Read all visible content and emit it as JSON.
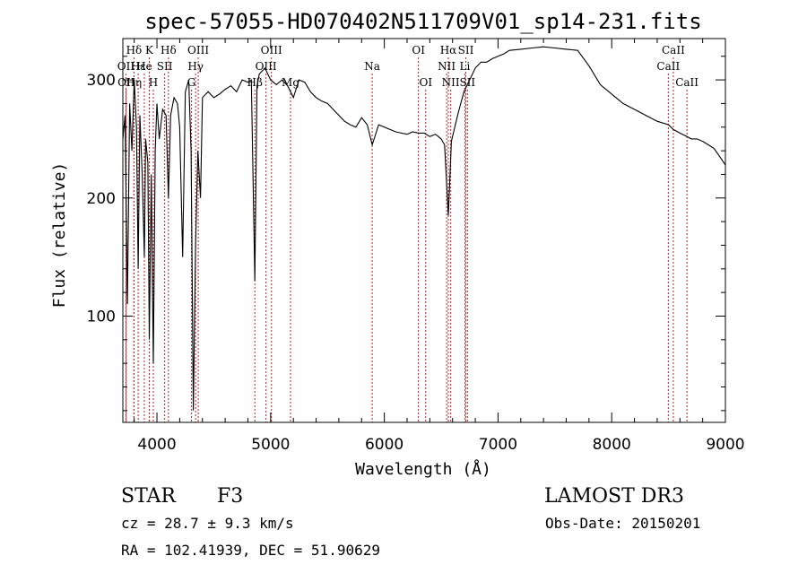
{
  "chart_data": {
    "type": "line",
    "title": "spec-57055-HD070402N511709V01_sp14-231.fits",
    "xlabel": "Wavelength (Å)",
    "ylabel": "Flux (relative)",
    "xlim": [
      3700,
      9000
    ],
    "ylim": [
      10,
      335
    ],
    "xticks": [
      4000,
      5000,
      6000,
      7000,
      8000,
      9000
    ],
    "yticks": [
      100,
      200,
      300
    ],
    "grid": false,
    "line_color": "#000000",
    "marker_color": "#b22222",
    "series": [
      {
        "x": [
          3700,
          3720,
          3740,
          3760,
          3780,
          3800,
          3820,
          3835,
          3850,
          3870,
          3889,
          3900,
          3920,
          3933,
          3950,
          3968,
          3985,
          4000,
          4020,
          4050,
          4080,
          4101,
          4120,
          4150,
          4180,
          4200,
          4226,
          4250,
          4280,
          4300,
          4320,
          4340,
          4360,
          4383,
          4400,
          4450,
          4500,
          4550,
          4600,
          4650,
          4700,
          4750,
          4800,
          4830,
          4861,
          4880,
          4900,
          4950,
          5000,
          5050,
          5100,
          5150,
          5200,
          5250,
          5300,
          5350,
          5400,
          5450,
          5500,
          5550,
          5600,
          5650,
          5700,
          5750,
          5800,
          5850,
          5893,
          5950,
          6000,
          6050,
          6100,
          6150,
          6200,
          6250,
          6300,
          6350,
          6400,
          6450,
          6500,
          6530,
          6563,
          6590,
          6620,
          6650,
          6700,
          6750,
          6800,
          6850,
          6900,
          6950,
          7000,
          7050,
          7100,
          7200,
          7300,
          7400,
          7500,
          7600,
          7700,
          7800,
          7900,
          8000,
          8100,
          8200,
          8300,
          8400,
          8500,
          8542,
          8600,
          8662,
          8700,
          8750,
          8800,
          8850,
          8900,
          8950,
          9000
        ],
        "values": [
          250,
          270,
          110,
          280,
          240,
          300,
          260,
          140,
          270,
          220,
          150,
          250,
          230,
          80,
          220,
          60,
          240,
          280,
          250,
          275,
          270,
          200,
          270,
          285,
          280,
          260,
          150,
          290,
          300,
          240,
          20,
          160,
          240,
          200,
          285,
          290,
          285,
          288,
          292,
          295,
          290,
          300,
          298,
          300,
          130,
          295,
          305,
          310,
          300,
          296,
          300,
          295,
          285,
          300,
          298,
          290,
          285,
          282,
          280,
          275,
          270,
          265,
          262,
          260,
          268,
          262,
          245,
          262,
          260,
          258,
          256,
          255,
          254,
          256,
          255,
          255,
          252,
          254,
          250,
          245,
          185,
          248,
          260,
          272,
          290,
          300,
          310,
          315,
          315,
          318,
          320,
          322,
          325,
          326,
          327,
          328,
          327,
          326,
          325,
          312,
          296,
          288,
          280,
          275,
          270,
          265,
          262,
          258,
          255,
          252,
          250,
          250,
          248,
          245,
          242,
          235,
          228
        ]
      }
    ],
    "line_markers": [
      {
        "label": "Hδ",
        "x": 3798,
        "row": 0
      },
      {
        "label": "OII",
        "x": 3727,
        "row": 1
      },
      {
        "label": "OII",
        "x": 3730,
        "row": 2
      },
      {
        "label": "Hε",
        "x": 3835,
        "row": 1
      },
      {
        "label": "Hη",
        "x": 3797,
        "row": 2
      },
      {
        "label": "K",
        "x": 3933,
        "row": 0
      },
      {
        "label": "He",
        "x": 3889,
        "row": 1
      },
      {
        "label": "H",
        "x": 3968,
        "row": 2
      },
      {
        "label": "SII",
        "x": 4068,
        "row": 1
      },
      {
        "label": "Hδ",
        "x": 4101,
        "row": 0
      },
      {
        "label": "OIII",
        "x": 4363,
        "row": 0
      },
      {
        "label": "Hγ",
        "x": 4340,
        "row": 1
      },
      {
        "label": "G",
        "x": 4304,
        "row": 2
      },
      {
        "label": "Hβ",
        "x": 4861,
        "row": 2
      },
      {
        "label": "OIII",
        "x": 5007,
        "row": 0
      },
      {
        "label": "OIII",
        "x": 4959,
        "row": 1
      },
      {
        "label": "Mg",
        "x": 5175,
        "row": 2
      },
      {
        "label": "Na",
        "x": 5893,
        "row": 1
      },
      {
        "label": "OI",
        "x": 6300,
        "row": 0
      },
      {
        "label": "OI",
        "x": 6364,
        "row": 2
      },
      {
        "label": "Hα",
        "x": 6563,
        "row": 0
      },
      {
        "label": "NII",
        "x": 6548,
        "row": 1
      },
      {
        "label": "NII",
        "x": 6584,
        "row": 2
      },
      {
        "label": "SII",
        "x": 6717,
        "row": 0
      },
      {
        "label": "Li",
        "x": 6708,
        "row": 1
      },
      {
        "label": "SII",
        "x": 6731,
        "row": 2
      },
      {
        "label": "CaII",
        "x": 8542,
        "row": 0
      },
      {
        "label": "CaII",
        "x": 8498,
        "row": 1
      },
      {
        "label": "CaII",
        "x": 8662,
        "row": 2
      }
    ]
  },
  "info": {
    "object_class": "STAR",
    "subclass": "F3",
    "survey": "LAMOST DR3",
    "cz": "cz = 28.7 ± 9.3 km/s",
    "obs_date": "Obs-Date: 20150201",
    "coords": "RA = 102.41939, DEC =  51.90629"
  }
}
